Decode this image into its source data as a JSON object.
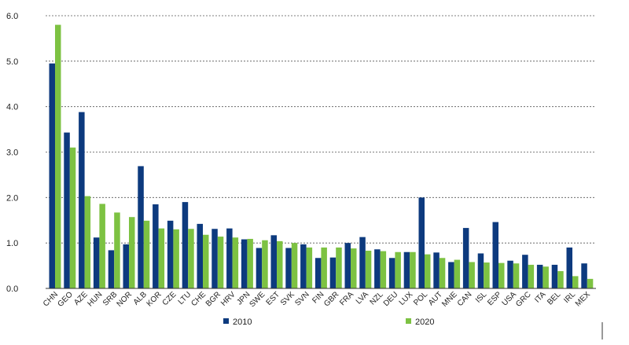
{
  "colors": {
    "series_2010": "#0d3a7e",
    "series_2020": "#7dc242"
  },
  "legend": {
    "s2010": "2010",
    "s2020": "2020"
  },
  "chart_data": {
    "type": "bar",
    "categories": [
      "CHN",
      "GEO",
      "AZE",
      "HUN",
      "SRB",
      "NOR",
      "ALB",
      "KOR",
      "CZE",
      "LTU",
      "CHE",
      "BGR",
      "HRV",
      "JPN",
      "SWE",
      "EST",
      "SVK",
      "SVN",
      "FIN",
      "GBR",
      "FRA",
      "LVA",
      "NZL",
      "DEU",
      "LUX",
      "POL",
      "AUT",
      "MNE",
      "CAN",
      "ISL",
      "ESP",
      "USA",
      "GRC",
      "ITA",
      "BEL",
      "IRL",
      "MEX"
    ],
    "series": [
      {
        "name": "2010",
        "values": [
          4.95,
          3.43,
          3.88,
          1.12,
          0.84,
          0.97,
          2.69,
          1.85,
          1.49,
          1.9,
          1.42,
          1.31,
          1.32,
          1.08,
          0.89,
          1.17,
          0.89,
          0.97,
          0.67,
          0.68,
          1.0,
          1.13,
          0.86,
          0.67,
          0.8,
          2.0,
          0.79,
          0.58,
          1.33,
          0.77,
          1.46,
          0.61,
          0.74,
          0.52,
          0.52,
          0.9,
          0.55
        ]
      },
      {
        "name": "2020",
        "values": [
          5.8,
          3.1,
          2.03,
          1.86,
          1.67,
          1.57,
          1.49,
          1.32,
          1.3,
          1.31,
          1.18,
          1.14,
          1.12,
          1.09,
          1.06,
          1.04,
          1.0,
          0.9,
          0.9,
          0.9,
          0.88,
          0.83,
          0.82,
          0.8,
          0.8,
          0.75,
          0.67,
          0.63,
          0.58,
          0.57,
          0.56,
          0.55,
          0.52,
          0.48,
          0.38,
          0.27,
          0.21
        ]
      }
    ],
    "yticks": [
      "0.0",
      "1.0",
      "2.0",
      "3.0",
      "4.0",
      "5.0",
      "6.0"
    ],
    "ylim": [
      0,
      6
    ],
    "title": "",
    "xlabel": "",
    "ylabel": "",
    "grid": true,
    "legend_position": "bottom-center"
  }
}
